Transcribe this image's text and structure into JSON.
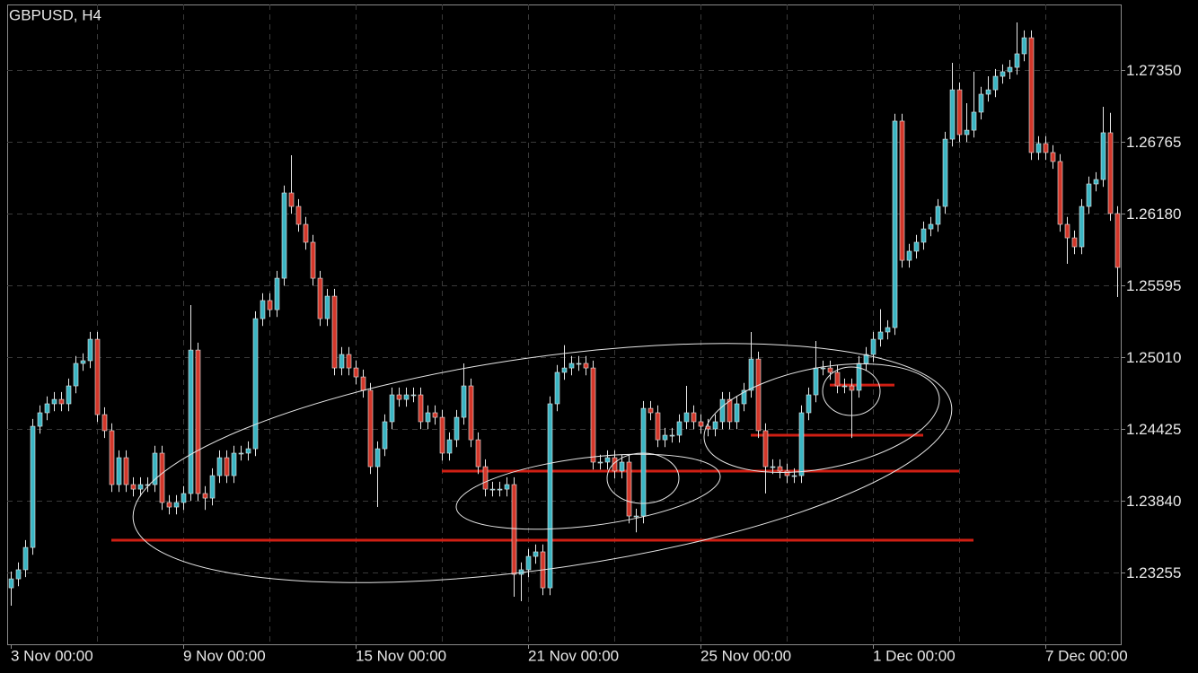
{
  "chart_data": {
    "type": "candlestick",
    "title": "GBPUSD, H4",
    "categories": [
      "3 Nov 00:00",
      null,
      null,
      null,
      null,
      null,
      null,
      null,
      null,
      null,
      null,
      null,
      null,
      null,
      null,
      null,
      null,
      null,
      null,
      null,
      null,
      null,
      null,
      null,
      "9 Nov 00:00",
      null,
      null,
      null,
      null,
      null,
      null,
      null,
      null,
      null,
      null,
      null,
      null,
      null,
      null,
      null,
      null,
      null,
      null,
      null,
      null,
      null,
      null,
      null,
      "15 Nov 00:00",
      null,
      null,
      null,
      null,
      null,
      null,
      null,
      null,
      null,
      null,
      null,
      null,
      null,
      null,
      null,
      null,
      null,
      null,
      null,
      null,
      null,
      null,
      null,
      "21 Nov 00:00",
      null,
      null,
      null,
      null,
      null,
      null,
      null,
      null,
      null,
      null,
      null,
      null,
      null,
      null,
      null,
      null,
      null,
      null,
      null,
      null,
      null,
      null,
      null,
      "25 Nov 00:00",
      null,
      null,
      null,
      null,
      null,
      null,
      null,
      null,
      null,
      null,
      null,
      null,
      null,
      null,
      null,
      null,
      null,
      null,
      null,
      null,
      null,
      null,
      null,
      "1 Dec 00:00",
      null,
      null,
      null,
      null,
      null,
      null,
      null,
      null,
      null,
      null,
      null,
      null,
      null,
      null,
      null,
      null,
      null,
      null,
      null,
      null,
      null,
      null,
      null,
      "7 Dec 00:00",
      null,
      null,
      null,
      null,
      null,
      null,
      null,
      null,
      null,
      null
    ],
    "ohlc": [
      [
        1.23131,
        1.23264,
        1.22985,
        1.23204
      ],
      [
        1.23204,
        1.23338,
        1.23144,
        1.23278
      ],
      [
        1.23278,
        1.2352,
        1.23218,
        1.2346
      ],
      [
        1.2346,
        1.24507,
        1.234,
        1.24447
      ],
      [
        1.24447,
        1.24617,
        1.24387,
        1.24557
      ],
      [
        1.24557,
        1.2469,
        1.24497,
        1.2463
      ],
      [
        1.2463,
        1.24726,
        1.2457,
        1.24666
      ],
      [
        1.24666,
        1.24726,
        1.2457,
        1.2463
      ],
      [
        1.2463,
        1.24836,
        1.2457,
        1.24776
      ],
      [
        1.24776,
        1.25019,
        1.24716,
        1.24959
      ],
      [
        1.24959,
        1.25041,
        1.24899,
        1.24981
      ],
      [
        1.24981,
        1.25216,
        1.24921,
        1.25156
      ],
      [
        1.25156,
        1.25216,
        1.24482,
        1.24542
      ],
      [
        1.24542,
        1.24602,
        1.24351,
        1.24411
      ],
      [
        1.24411,
        1.24471,
        1.23912,
        1.23972
      ],
      [
        1.23972,
        1.24251,
        1.23912,
        1.24191
      ],
      [
        1.24191,
        1.24251,
        1.23912,
        1.23972
      ],
      [
        1.23972,
        1.24032,
        1.23875,
        1.23935
      ],
      [
        1.23935,
        1.24032,
        1.23875,
        1.23972
      ],
      [
        1.23972,
        1.24032,
        1.23912,
        1.23972
      ],
      [
        1.23972,
        1.24288,
        1.23912,
        1.24228
      ],
      [
        1.24228,
        1.24288,
        1.23766,
        1.23826
      ],
      [
        1.23826,
        1.23886,
        1.23729,
        1.23789
      ],
      [
        1.23789,
        1.23886,
        1.23729,
        1.23826
      ],
      [
        1.23826,
        1.23959,
        1.23766,
        1.23899
      ],
      [
        1.23899,
        1.25434,
        1.23839,
        1.25068
      ],
      [
        1.25068,
        1.25128,
        1.23839,
        1.23899
      ],
      [
        1.23899,
        1.23959,
        1.23766,
        1.23862
      ],
      [
        1.23862,
        1.24105,
        1.23802,
        1.24045
      ],
      [
        1.24045,
        1.24251,
        1.23985,
        1.24191
      ],
      [
        1.24191,
        1.24251,
        1.23985,
        1.24045
      ],
      [
        1.24045,
        1.24288,
        1.23985,
        1.24228
      ],
      [
        1.24228,
        1.24288,
        1.24168,
        1.24228
      ],
      [
        1.24228,
        1.24324,
        1.24168,
        1.24264
      ],
      [
        1.24264,
        1.25384,
        1.24204,
        1.25324
      ],
      [
        1.25324,
        1.25531,
        1.25264,
        1.25471
      ],
      [
        1.25471,
        1.25531,
        1.25337,
        1.25397
      ],
      [
        1.25397,
        1.25713,
        1.25337,
        1.25653
      ],
      [
        1.25653,
        1.26408,
        1.25593,
        1.26348
      ],
      [
        1.26348,
        1.26655,
        1.26178,
        1.26238
      ],
      [
        1.26238,
        1.26298,
        1.26032,
        1.26092
      ],
      [
        1.26092,
        1.26152,
        1.25886,
        1.25946
      ],
      [
        1.25946,
        1.26006,
        1.25593,
        1.25653
      ],
      [
        1.25653,
        1.25713,
        1.25264,
        1.25324
      ],
      [
        1.25324,
        1.25567,
        1.25264,
        1.25507
      ],
      [
        1.25507,
        1.25567,
        1.24862,
        1.24922
      ],
      [
        1.24922,
        1.25092,
        1.24862,
        1.25032
      ],
      [
        1.25032,
        1.25092,
        1.24862,
        1.24922
      ],
      [
        1.24922,
        1.24982,
        1.24789,
        1.24849
      ],
      [
        1.24849,
        1.24909,
        1.2468,
        1.2474
      ],
      [
        1.2474,
        1.248,
        1.24058,
        1.24118
      ],
      [
        1.24118,
        1.24324,
        1.23789,
        1.24264
      ],
      [
        1.24264,
        1.24544,
        1.24204,
        1.24484
      ],
      [
        1.24484,
        1.24763,
        1.24424,
        1.24703
      ],
      [
        1.24703,
        1.24763,
        1.24606,
        1.24666
      ],
      [
        1.24666,
        1.24763,
        1.24606,
        1.24703
      ],
      [
        1.24703,
        1.24763,
        1.24643,
        1.24703
      ],
      [
        1.24703,
        1.24763,
        1.24424,
        1.24484
      ],
      [
        1.24484,
        1.24617,
        1.24424,
        1.24557
      ],
      [
        1.24557,
        1.24617,
        1.2446,
        1.2452
      ],
      [
        1.2452,
        1.2458,
        1.24168,
        1.24228
      ],
      [
        1.24228,
        1.24397,
        1.24168,
        1.24337
      ],
      [
        1.24337,
        1.2458,
        1.24277,
        1.2452
      ],
      [
        1.2452,
        1.24959,
        1.2446,
        1.24776
      ],
      [
        1.24776,
        1.24836,
        1.24277,
        1.24337
      ],
      [
        1.24337,
        1.24397,
        1.24058,
        1.24118
      ],
      [
        1.24118,
        1.24178,
        1.23875,
        1.23935
      ],
      [
        1.23935,
        1.23995,
        1.23875,
        1.23935
      ],
      [
        1.23935,
        1.23995,
        1.23875,
        1.23935
      ],
      [
        1.23935,
        1.24032,
        1.23875,
        1.23972
      ],
      [
        1.23972,
        1.24032,
        1.23058,
        1.23241
      ],
      [
        1.23241,
        1.23338,
        1.23022,
        1.23278
      ],
      [
        1.23278,
        1.23447,
        1.23218,
        1.23387
      ],
      [
        1.23387,
        1.23484,
        1.23327,
        1.23424
      ],
      [
        1.23424,
        1.23484,
        1.23071,
        1.23131
      ],
      [
        1.23131,
        1.2469,
        1.23071,
        1.2463
      ],
      [
        1.2463,
        1.24946,
        1.2457,
        1.24886
      ],
      [
        1.24886,
        1.25108,
        1.24826,
        1.24922
      ],
      [
        1.24922,
        1.25019,
        1.24862,
        1.24959
      ],
      [
        1.24959,
        1.25019,
        1.24899,
        1.24959
      ],
      [
        1.24959,
        1.25019,
        1.24862,
        1.24922
      ],
      [
        1.24922,
        1.24982,
        1.24095,
        1.24155
      ],
      [
        1.24155,
        1.24215,
        1.24095,
        1.24155
      ],
      [
        1.24155,
        1.24251,
        1.24095,
        1.24191
      ],
      [
        1.24191,
        1.24251,
        1.24022,
        1.24082
      ],
      [
        1.24082,
        1.24215,
        1.24022,
        1.24155
      ],
      [
        1.24155,
        1.24215,
        1.23656,
        1.23716
      ],
      [
        1.23716,
        1.23776,
        1.23583,
        1.23716
      ],
      [
        1.23716,
        1.24653,
        1.23656,
        1.24593
      ],
      [
        1.24593,
        1.24653,
        1.24497,
        1.24557
      ],
      [
        1.24557,
        1.24617,
        1.24277,
        1.24337
      ],
      [
        1.24337,
        1.24434,
        1.24277,
        1.24374
      ],
      [
        1.24374,
        1.24434,
        1.24314,
        1.24374
      ],
      [
        1.24374,
        1.24544,
        1.24314,
        1.24484
      ],
      [
        1.24484,
        1.24776,
        1.24424,
        1.24557
      ],
      [
        1.24557,
        1.24617,
        1.24424,
        1.24484
      ],
      [
        1.24484,
        1.24544,
        1.24387,
        1.24447
      ],
      [
        1.24447,
        1.24507,
        1.24365,
        1.24425
      ],
      [
        1.24425,
        1.24544,
        1.24365,
        1.24484
      ],
      [
        1.24484,
        1.24726,
        1.24424,
        1.24666
      ],
      [
        1.24666,
        1.24726,
        1.24424,
        1.24484
      ],
      [
        1.24484,
        1.2469,
        1.24424,
        1.2463
      ],
      [
        1.2463,
        1.248,
        1.2457,
        1.2474
      ],
      [
        1.2474,
        1.25215,
        1.2468,
        1.24995
      ],
      [
        1.24995,
        1.25055,
        1.24351,
        1.24411
      ],
      [
        1.24411,
        1.24471,
        1.239,
        1.24118
      ],
      [
        1.24118,
        1.24178,
        1.24058,
        1.24118
      ],
      [
        1.24118,
        1.24178,
        1.24022,
        1.24082
      ],
      [
        1.24082,
        1.24142,
        1.23985,
        1.24045
      ],
      [
        1.24045,
        1.24105,
        1.23985,
        1.24045
      ],
      [
        1.24045,
        1.24617,
        1.23985,
        1.24557
      ],
      [
        1.24557,
        1.24763,
        1.24497,
        1.24703
      ],
      [
        1.24703,
        1.25142,
        1.24643,
        1.24922
      ],
      [
        1.24922,
        1.24982,
        1.24862,
        1.24922
      ],
      [
        1.24922,
        1.24982,
        1.24826,
        1.24886
      ],
      [
        1.24886,
        1.24946,
        1.24716,
        1.24776
      ],
      [
        1.24776,
        1.24836,
        1.24716,
        1.24776
      ],
      [
        1.24776,
        1.24836,
        1.24351,
        1.2474
      ],
      [
        1.2474,
        1.25019,
        1.2468,
        1.24959
      ],
      [
        1.24959,
        1.25092,
        1.24899,
        1.25032
      ],
      [
        1.25032,
        1.25216,
        1.24972,
        1.25156
      ],
      [
        1.25156,
        1.254,
        1.25096,
        1.25215
      ],
      [
        1.25215,
        1.25311,
        1.25155,
        1.25251
      ],
      [
        1.25251,
        1.26993,
        1.25191,
        1.26933
      ],
      [
        1.26933,
        1.26993,
        1.25739,
        1.25799
      ],
      [
        1.25799,
        1.25933,
        1.25739,
        1.25873
      ],
      [
        1.25873,
        1.26006,
        1.25813,
        1.25946
      ],
      [
        1.25946,
        1.26115,
        1.25886,
        1.26055
      ],
      [
        1.26055,
        1.26152,
        1.25995,
        1.26092
      ],
      [
        1.26092,
        1.26298,
        1.26032,
        1.26238
      ],
      [
        1.26238,
        1.26846,
        1.26178,
        1.26786
      ],
      [
        1.26786,
        1.27408,
        1.26726,
        1.27188
      ],
      [
        1.27188,
        1.27248,
        1.26763,
        1.26823
      ],
      [
        1.26823,
        1.27079,
        1.26763,
        1.26859
      ],
      [
        1.26859,
        1.27335,
        1.26799,
        1.27006
      ],
      [
        1.27006,
        1.27212,
        1.26946,
        1.27152
      ],
      [
        1.27152,
        1.27298,
        1.27092,
        1.27188
      ],
      [
        1.27188,
        1.27358,
        1.27128,
        1.27298
      ],
      [
        1.27298,
        1.27395,
        1.27238,
        1.27335
      ],
      [
        1.27335,
        1.27431,
        1.27275,
        1.27371
      ],
      [
        1.27371,
        1.27737,
        1.27311,
        1.27481
      ],
      [
        1.27481,
        1.27672,
        1.27421,
        1.27612
      ],
      [
        1.27612,
        1.27672,
        1.26617,
        1.26677
      ],
      [
        1.26677,
        1.2681,
        1.26617,
        1.2675
      ],
      [
        1.2675,
        1.2681,
        1.26617,
        1.26677
      ],
      [
        1.26677,
        1.26737,
        1.26544,
        1.26604
      ],
      [
        1.26604,
        1.26664,
        1.26032,
        1.26092
      ],
      [
        1.26092,
        1.26152,
        1.2577,
        1.25982
      ],
      [
        1.25982,
        1.26042,
        1.25849,
        1.25909
      ],
      [
        1.25909,
        1.26298,
        1.25849,
        1.26238
      ],
      [
        1.26238,
        1.26481,
        1.26178,
        1.26421
      ],
      [
        1.26421,
        1.26517,
        1.26361,
        1.26457
      ],
      [
        1.26457,
        1.2705,
        1.26397,
        1.26838
      ],
      [
        1.26838,
        1.27,
        1.2612,
        1.2618
      ],
      [
        1.2618,
        1.2624,
        1.255,
        1.25741
      ]
    ],
    "up_color": "#3ab5c3",
    "down_color": "#d3372a",
    "wick_color": "#e8e8e8",
    "ylim": [
      1.22671,
      1.27883
    ],
    "yticks": [
      {
        "value": 1.2735,
        "label": "1.27350"
      },
      1.26765,
      {
        "value": 1.2618,
        "label": "1.26180"
      },
      1.25595,
      {
        "value": 1.2501,
        "label": "1.25010"
      },
      1.24425,
      {
        "value": 1.2384,
        "label": "1.23840"
      },
      1.23255
    ],
    "grid": true,
    "levels": [
      {
        "value": 1.23519,
        "from": 14,
        "to": 134
      },
      {
        "value": 1.24082,
        "from": 60,
        "to": 132
      },
      {
        "value": 1.24374,
        "from": 103,
        "to": 127
      },
      {
        "value": 1.24783,
        "from": 114,
        "to": 123
      }
    ],
    "level_color": "#d01f14"
  }
}
